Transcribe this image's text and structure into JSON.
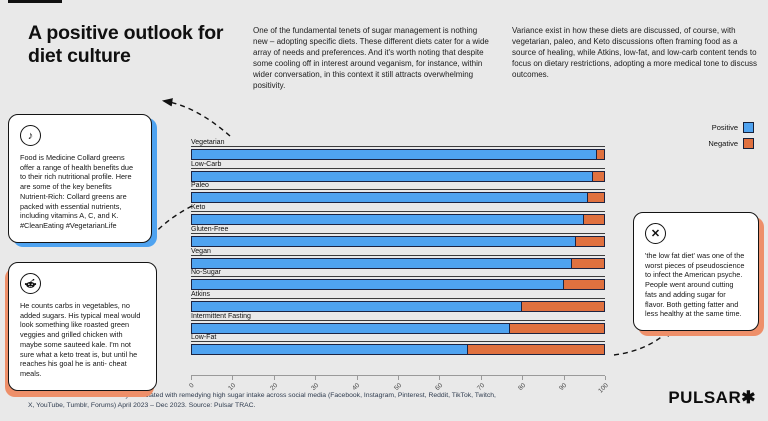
{
  "page": {
    "title": "A positive outlook for diet culture",
    "intro_1": "One of the fundamental tenets of sugar management is nothing new – adopting specific diets. These different diets cater for a wide array of needs and preferences. And it's worth noting that despite some cooling off in interest around veganism, for instance, within wider conversation, in this context it still attracts overwhelming positivity.",
    "intro_2": "Variance exist in how these diets are discussed, of course, with vegetarian, paleo, and Keto discussions often framing food as a source of healing, while Atkins, low-fat, and low-carb content tends to focus on dietary restrictions, adopting a more medical tone to discuss outcomes."
  },
  "colors": {
    "background": "#E9E9E9",
    "positive": "#4FA3F0",
    "negative": "#E0713F",
    "card_shadow_blue": "#4FA3F0",
    "card_shadow_orange": "#EE8F69",
    "bar_border": "#1D2340"
  },
  "legend": {
    "positive_label": "Positive",
    "negative_label": "Negative"
  },
  "cards": {
    "tiktok": {
      "icon": "tiktok-icon",
      "glyph": "♪",
      "text": "Food is Medicine Collard greens offer a range of health benefits due to their rich nutritional profile. Here are some of the key benefits Nutrient-Rich: Collard greens are packed with essential nutrients, including vitamins A, C, and K. #CleanEating #VegetarianLife"
    },
    "reddit": {
      "icon": "reddit-icon",
      "text": "He counts carbs in vegetables, no added sugars. His typical meal would look something like roasted green veggies and grilled chicken with maybe some sauteed kale. I'm not sure what a keto treat is, but until he reaches his goal he is anti- cheat meals."
    },
    "x": {
      "icon": "x-icon",
      "glyph": "✕",
      "text": "'the low fat diet' was one of the worst pieces of pseudoscience to infect the American psyche. People went around cutting fats and adding sugar for flavor. Both getting fatter and less healthy at the same time."
    }
  },
  "chart_data": {
    "type": "bar",
    "orientation": "horizontal",
    "stacked_percent": true,
    "title": "A positive outlook for diet culture",
    "categories": [
      "Vegetarian",
      "Low-Carb",
      "Paleo",
      "Keto",
      "Gluten-Free",
      "Vegan",
      "No-Sugar",
      "Atkins",
      "Intermittent Fasting",
      "Low-Fat"
    ],
    "series": [
      {
        "name": "Positive",
        "color": "#4FA3F0",
        "values": [
          98,
          97,
          96,
          95,
          93,
          92,
          90,
          80,
          77,
          67
        ]
      },
      {
        "name": "Negative",
        "color": "#E0713F",
        "values": [
          2,
          3,
          4,
          5,
          7,
          8,
          10,
          20,
          23,
          33
        ]
      }
    ],
    "xlabel": "",
    "ylabel": "",
    "xlim": [
      0,
      100
    ],
    "xticks": [
      0,
      10,
      20,
      30,
      40,
      50,
      60,
      70,
      80,
      90,
      100
    ],
    "grid": false,
    "legend_position": "top-right"
  },
  "footer": {
    "caption": "Mentions of diets most commonly associated with remedying high sugar intake across social media (Facebook, Instagram, Pinterest, Reddit, TikTok, Twitch, X, YouTube, Tumblr, Forums) April 2023 – Dec 2023. Source: Pulsar TRAC.",
    "logo_text": "PULSAR",
    "logo_mark": "✱"
  }
}
